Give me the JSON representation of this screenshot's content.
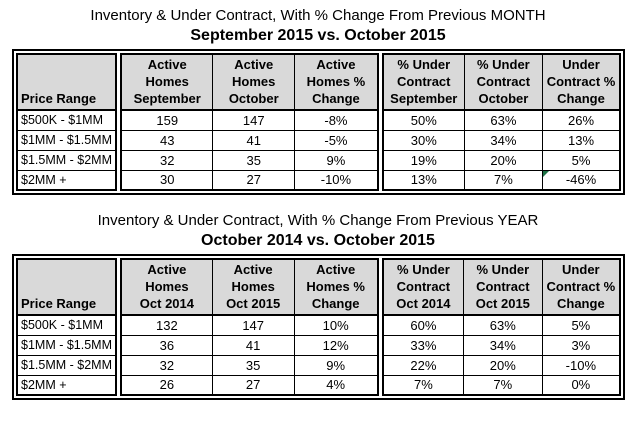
{
  "colors": {
    "header_bg": "#d9d9d9",
    "table_border": "#000000",
    "text": "#000000",
    "error_flag_green": "#1e7145"
  },
  "chart_data": [
    {
      "type": "table",
      "title": "Inventory & Under Contract, With % Change From Previous MONTH",
      "subtitle": "September 2015 vs. October 2015",
      "columns": [
        "Price Range",
        "Active Homes September",
        "Active Homes October",
        "Active Homes % Change",
        "% Under Contract September",
        "% Under Contract October",
        "Under Contract % Change"
      ],
      "columns_multiline": [
        "Price Range",
        "Active\nHomes\nSeptember",
        "Active\nHomes\nOctober",
        "Active\nHomes %\nChange",
        "% Under\nContract\nSeptember",
        "% Under\nContract\nOctober",
        "Under\nContract %\nChange"
      ],
      "rows": [
        [
          "$500K - $1MM",
          "159",
          "147",
          "-8%",
          "50%",
          "63%",
          "26%"
        ],
        [
          "$1MM - $1.5MM",
          "43",
          "41",
          "-5%",
          "30%",
          "34%",
          "13%"
        ],
        [
          "$1.5MM - $2MM",
          "32",
          "35",
          "9%",
          "19%",
          "20%",
          "5%"
        ],
        [
          "$2MM +",
          "30",
          "27",
          "-10%",
          "13%",
          "7%",
          "-46%"
        ]
      ],
      "flag": {
        "row": "$2MM +",
        "column": "Under Contract % Change",
        "description": "small green triangle in top-left corner of the -46% cell",
        "color": "#1e7145"
      }
    },
    {
      "type": "table",
      "title": "Inventory & Under Contract, With % Change From Previous YEAR",
      "subtitle": "October 2014 vs. October 2015",
      "columns": [
        "Price Range",
        "Active Homes Oct 2014",
        "Active Homes Oct 2015",
        "Active Homes % Change",
        "% Under Contract Oct 2014",
        "% Under Contract Oct 2015",
        "Under Contract % Change"
      ],
      "columns_multiline": [
        "Price Range",
        "Active\nHomes\nOct 2014",
        "Active\nHomes\nOct 2015",
        "Active\nHomes %\nChange",
        "% Under\nContract\nOct 2014",
        "% Under\nContract\nOct 2015",
        "Under\nContract %\nChange"
      ],
      "rows": [
        [
          "$500K - $1MM",
          "132",
          "147",
          "10%",
          "60%",
          "63%",
          "5%"
        ],
        [
          "$1MM - $1.5MM",
          "36",
          "41",
          "12%",
          "33%",
          "34%",
          "3%"
        ],
        [
          "$1.5MM - $2MM",
          "32",
          "35",
          "9%",
          "22%",
          "20%",
          "-10%"
        ],
        [
          "$2MM +",
          "26",
          "27",
          "4%",
          "7%",
          "7%",
          "0%"
        ]
      ]
    }
  ]
}
